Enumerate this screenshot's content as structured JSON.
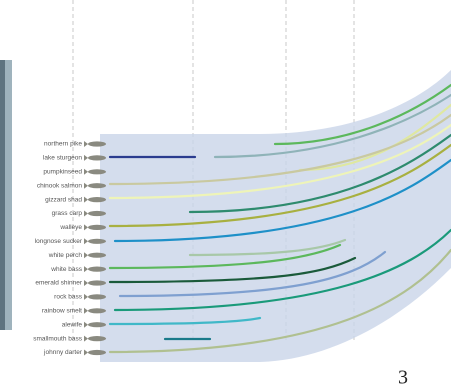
{
  "slide": {
    "species": [
      "northern pike",
      "lake sturgeon",
      "pumpkinseed",
      "chinook salmon",
      "gizzard shad",
      "grass carp",
      "walleye",
      "longnose sucker",
      "white perch",
      "white bass",
      "emerald shinner",
      "rock bass",
      "rainbow smelt",
      "alewife",
      "smallmouth bass",
      "johnny darter"
    ],
    "page_number": "3"
  }
}
